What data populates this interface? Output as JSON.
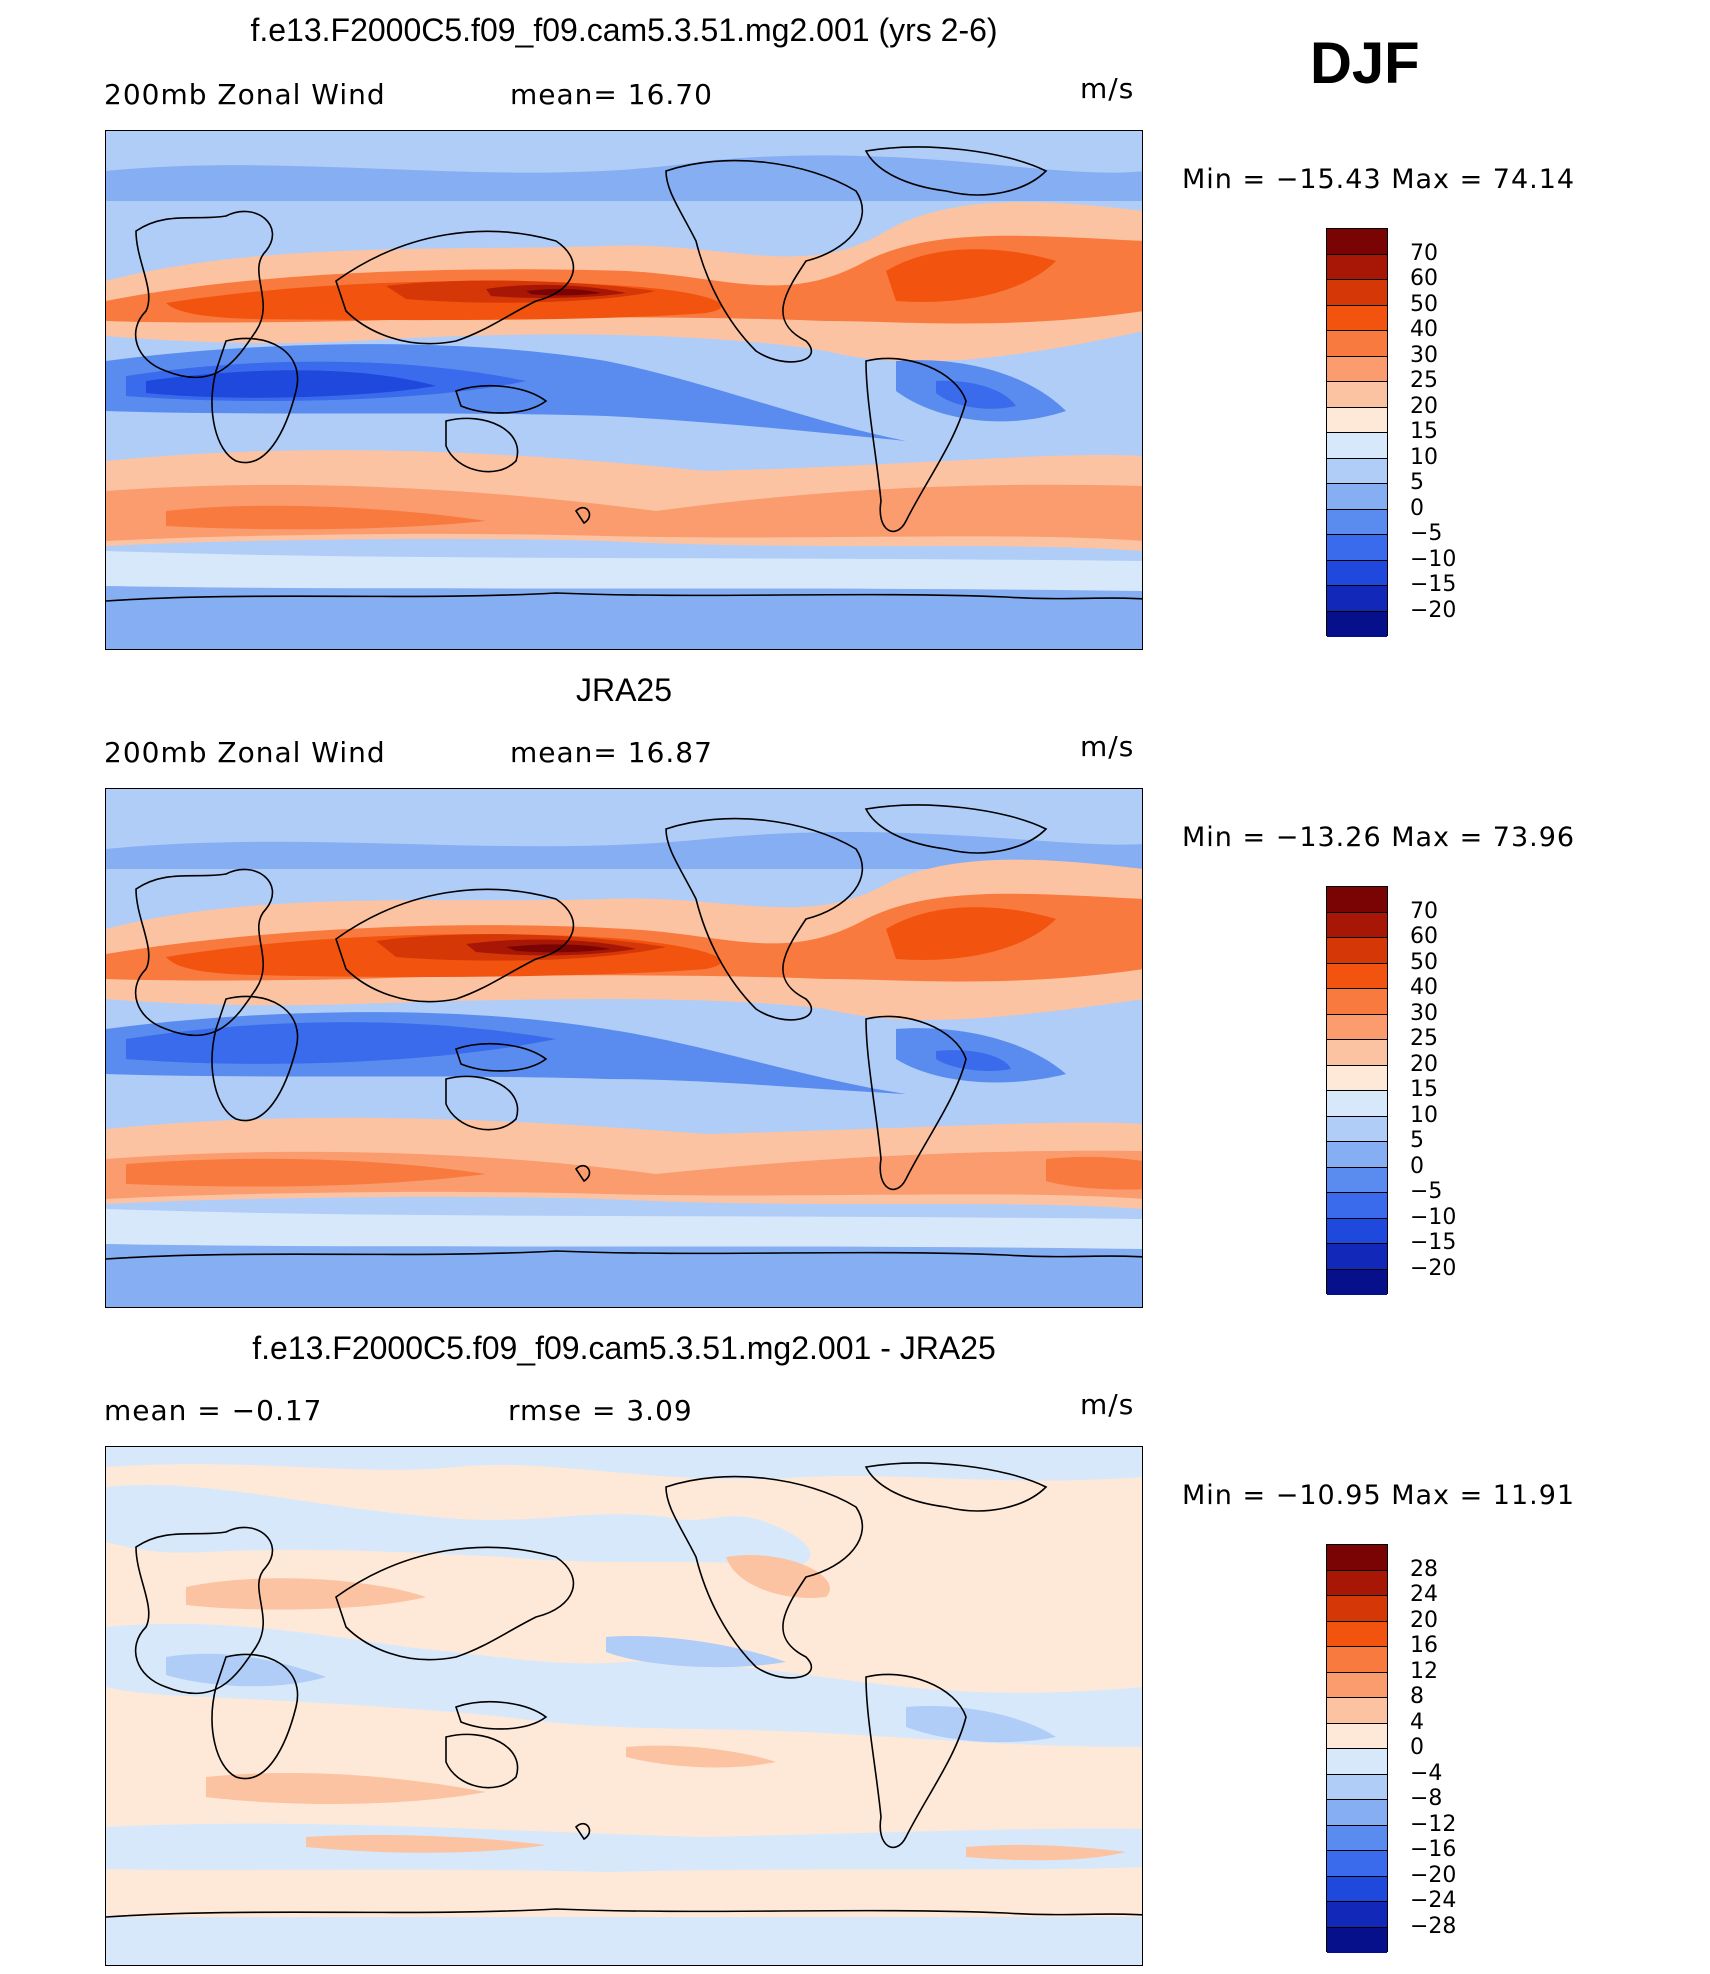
{
  "season": "DJF",
  "panels": [
    {
      "title": "f.e13.F2000C5.f09_f09.cam5.3.51.mg2.001 (yrs 2-6)",
      "left_label": "200mb Zonal Wind",
      "mid_label": "mean=  16.70",
      "units": "m/s",
      "minmax": "Min = −15.43 Max =   74.14"
    },
    {
      "title": "JRA25",
      "left_label": "200mb Zonal Wind",
      "mid_label": "mean=  16.87",
      "units": "m/s",
      "minmax": "Min = −13.26 Max =   73.96"
    },
    {
      "title": "f.e13.F2000C5.f09_f09.cam5.3.51.mg2.001 - JRA25",
      "left_label": "mean =   −0.17",
      "mid_label": "rmse =    3.09",
      "units": "m/s",
      "minmax": "Min = −10.95 Max =   11.91"
    }
  ],
  "colorbars": {
    "wind": {
      "labels": [
        "70",
        "60",
        "50",
        "40",
        "30",
        "25",
        "20",
        "15",
        "10",
        "5",
        "0",
        "−5",
        "−10",
        "−15",
        "−20"
      ],
      "colors": [
        "#7a0403",
        "#a81705",
        "#d63707",
        "#f2540f",
        "#f87a3e",
        "#fb9c6f",
        "#fcc3a2",
        "#fee9d8",
        "#d8e8fb",
        "#b0cdf8",
        "#86aef3",
        "#5a8cef",
        "#3a6bec",
        "#1f48dd",
        "#1128b8",
        "#06108a"
      ]
    },
    "diff": {
      "labels": [
        "28",
        "24",
        "20",
        "16",
        "12",
        "8",
        "4",
        "0",
        "−4",
        "−8",
        "−12",
        "−16",
        "−20",
        "−24",
        "−28"
      ],
      "colors": [
        "#7a0403",
        "#a81705",
        "#d63707",
        "#f2540f",
        "#f87a3e",
        "#fb9c6f",
        "#fcc3a2",
        "#fee9d8",
        "#d8e8fb",
        "#b0cdf8",
        "#86aef3",
        "#5a8cef",
        "#3a6bec",
        "#1f48dd",
        "#1128b8",
        "#06108a"
      ]
    }
  }
}
